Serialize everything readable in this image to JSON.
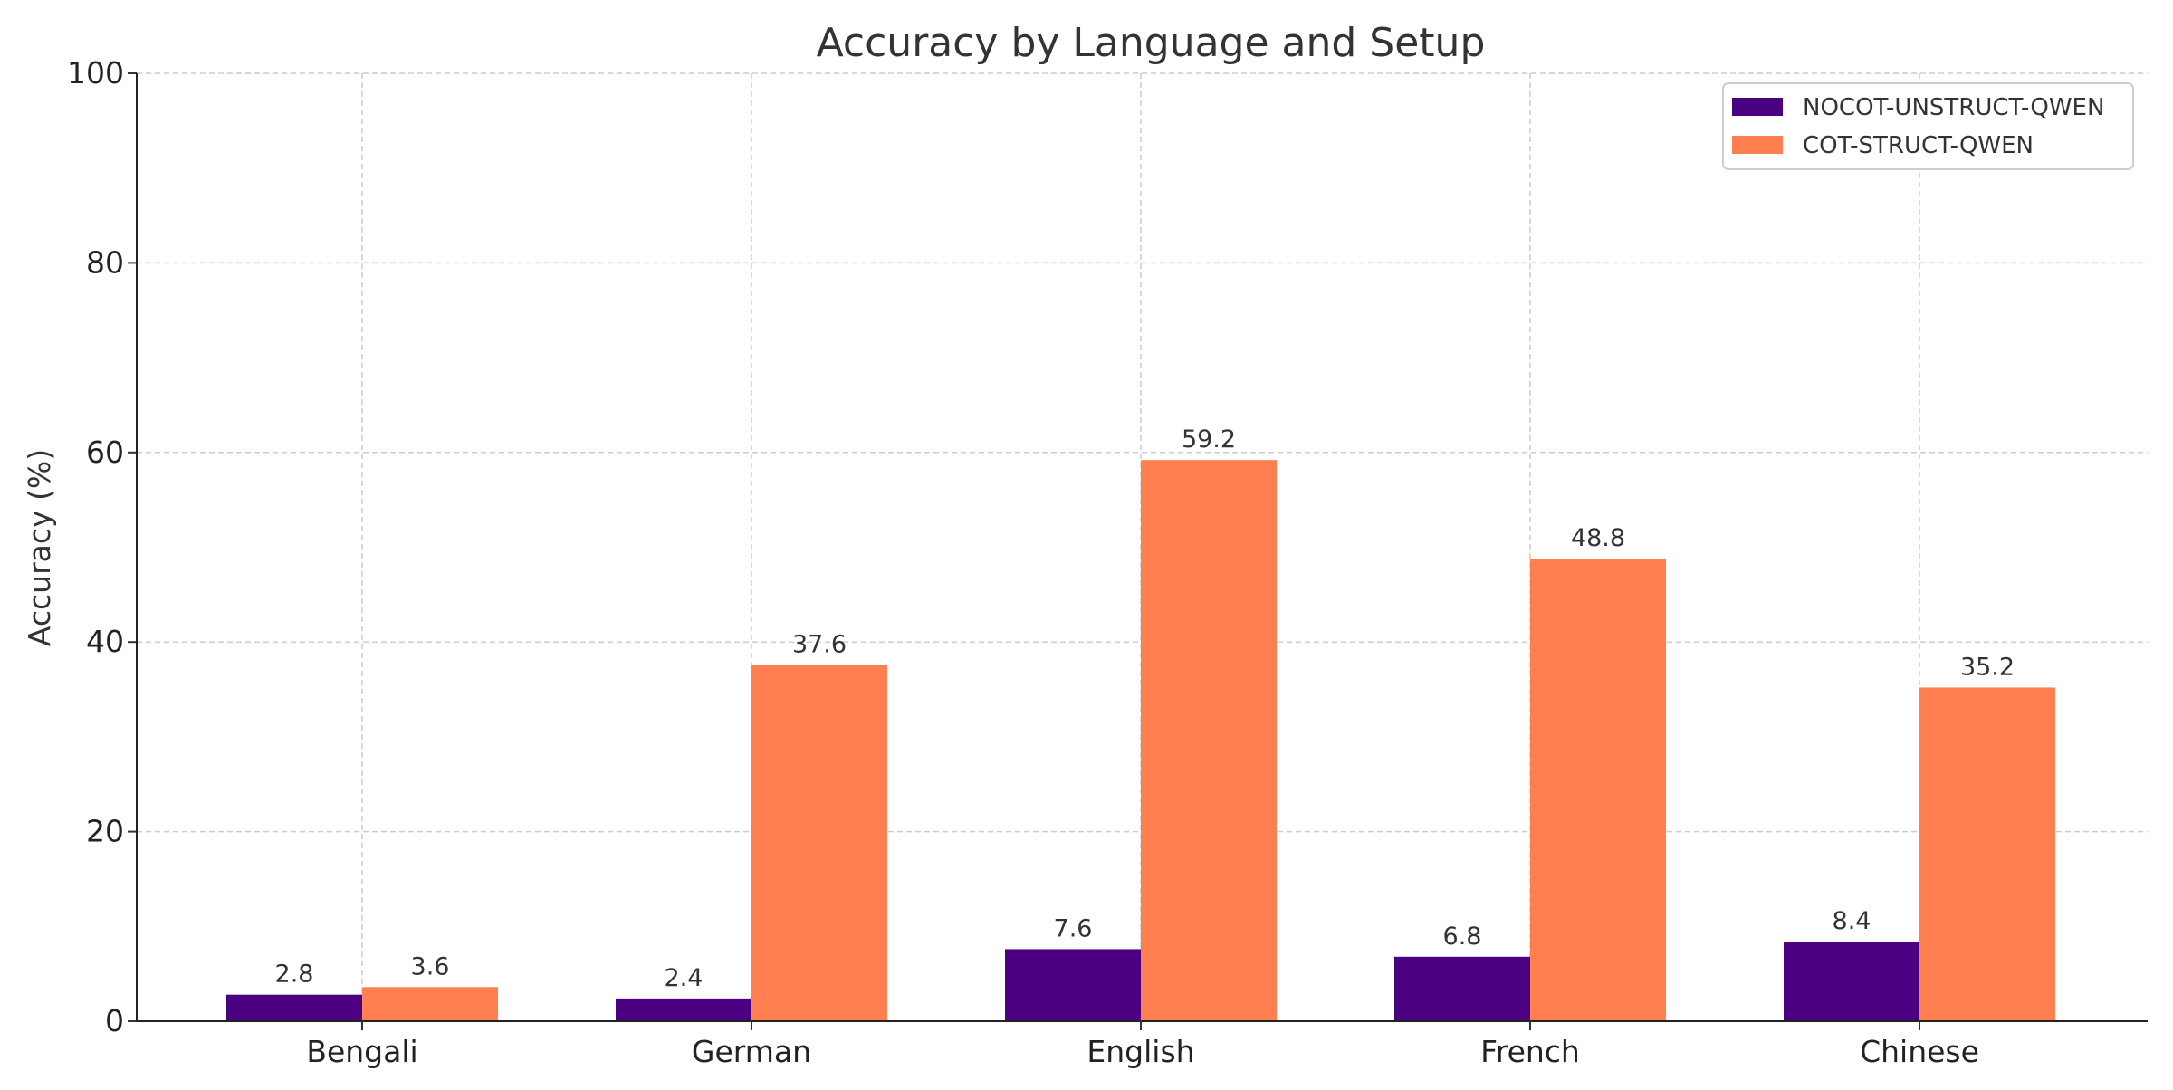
{
  "chart_data": {
    "type": "bar",
    "title": "Accuracy by Language and Setup",
    "xlabel": "",
    "ylabel": "Accuracy (%)",
    "categories": [
      "Bengali",
      "German",
      "English",
      "French",
      "Chinese"
    ],
    "series": [
      {
        "name": "NOCOT-UNSTRUCT-QWEN",
        "color": "#4b0082",
        "values": [
          2.8,
          2.4,
          7.6,
          6.8,
          8.4
        ]
      },
      {
        "name": "COT-STRUCT-QWEN",
        "color": "#ff7f50",
        "values": [
          3.6,
          37.6,
          59.2,
          48.8,
          35.2
        ]
      }
    ],
    "ylim": [
      0,
      100
    ],
    "yticks": [
      0,
      20,
      40,
      60,
      80,
      100
    ],
    "grid": true,
    "legend_position": "top-right",
    "data_labels": true
  }
}
